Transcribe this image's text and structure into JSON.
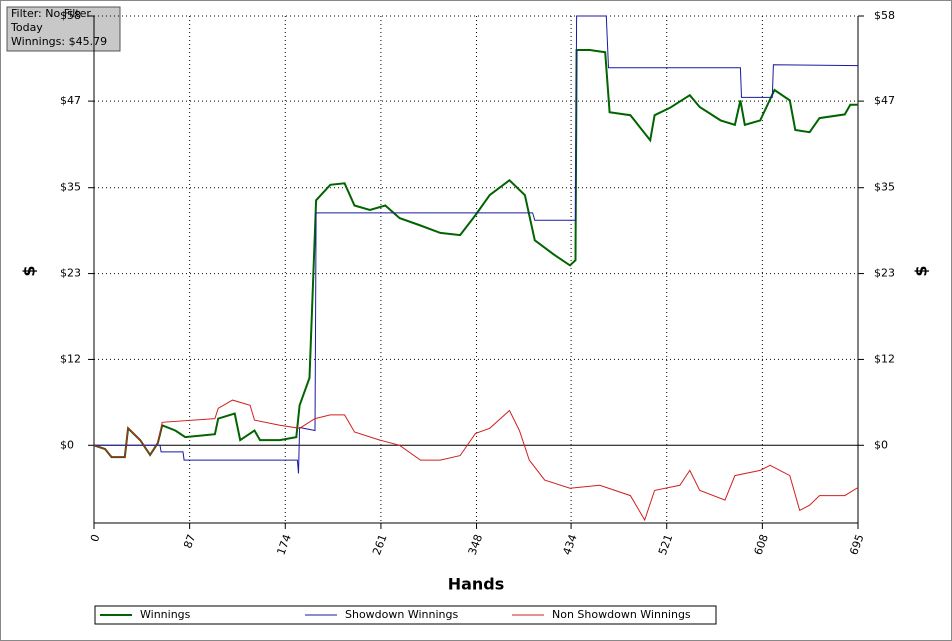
{
  "chart_data": {
    "type": "line",
    "info": [
      "Filter: No Filter",
      "Today",
      "Winnings: $45.79"
    ],
    "xlabel": "Hands",
    "ylabel": "$",
    "xlim": [
      0,
      695
    ],
    "xticks": [
      0,
      87,
      174,
      261,
      348,
      434,
      521,
      608,
      695
    ],
    "ylim": [
      -10.5,
      58
    ],
    "yticks": [
      {
        "value": 0,
        "label": "$0"
      },
      {
        "value": 11.6,
        "label": "$12"
      },
      {
        "value": 23.2,
        "label": "$23"
      },
      {
        "value": 34.8,
        "label": "$35"
      },
      {
        "value": 46.5,
        "label": "$47"
      },
      {
        "value": 58,
        "label": "$58"
      }
    ],
    "grid": true,
    "series": [
      {
        "name": "Winnings",
        "color": "#006400",
        "x": [
          0,
          10,
          16,
          28,
          31,
          42,
          51,
          58,
          62,
          74,
          83,
          110,
          113,
          128,
          133,
          146,
          151,
          169,
          184,
          187,
          196,
          202,
          215,
          228,
          237,
          251,
          265,
          278,
          297,
          315,
          333,
          347,
          360,
          378,
          392,
          401,
          419,
          433,
          438,
          439,
          451,
          465,
          469,
          488,
          506,
          510,
          524,
          542,
          551,
          570,
          583,
          588,
          592,
          606,
          619,
          633,
          638,
          651,
          660,
          683,
          688,
          695
        ],
        "values": [
          0,
          -0.5,
          -1.6,
          -1.6,
          2.3,
          0.7,
          -1.3,
          0.3,
          2.7,
          2.0,
          1.1,
          1.5,
          3.6,
          4.3,
          0.7,
          2.0,
          0.7,
          0.7,
          1.1,
          5.4,
          9.1,
          33.1,
          35.2,
          35.4,
          32.4,
          31.8,
          32.4,
          30.7,
          29.7,
          28.7,
          28.4,
          31.1,
          33.8,
          35.8,
          33.8,
          27.7,
          25.7,
          24.3,
          25.0,
          53.4,
          53.4,
          53.1,
          45.0,
          44.6,
          41.2,
          44.6,
          45.6,
          47.3,
          45.7,
          43.9,
          43.3,
          46.6,
          43.3,
          43.9,
          48.0,
          46.6,
          42.6,
          42.3,
          44.2,
          44.7,
          46.0,
          46.0
        ]
      },
      {
        "name": "Showdown Winnings",
        "color": "#1a1aa0",
        "x": [
          0,
          60,
          61,
          81,
          82,
          185,
          186,
          187,
          201,
          202,
          399,
          401,
          438,
          439,
          466,
          468,
          588,
          589,
          617,
          618,
          695
        ],
        "values": [
          0,
          0,
          -0.9,
          -0.9,
          -2.0,
          -2.0,
          -3.8,
          2.4,
          2.0,
          31.4,
          31.4,
          30.4,
          30.4,
          58,
          58,
          51.0,
          51.0,
          47.0,
          47.0,
          51.4,
          51.3
        ]
      },
      {
        "name": "Non Showdown Winnings",
        "color": "#d02020",
        "x": [
          0,
          10,
          16,
          28,
          31,
          42,
          51,
          58,
          62,
          110,
          113,
          126,
          142,
          146,
          169,
          187,
          201,
          215,
          228,
          237,
          260,
          278,
          297,
          315,
          333,
          347,
          360,
          378,
          387,
          396,
          410,
          433,
          460,
          488,
          501,
          510,
          533,
          542,
          551,
          574,
          583,
          606,
          615,
          633,
          642,
          651,
          660,
          683,
          695
        ],
        "values": [
          0,
          -0.5,
          -1.6,
          -1.6,
          2.3,
          0.7,
          -1.3,
          0.3,
          3.1,
          3.6,
          5.0,
          6.1,
          5.4,
          3.4,
          2.7,
          2.3,
          3.6,
          4.1,
          4.1,
          1.8,
          0.7,
          0,
          -2.0,
          -2.0,
          -1.4,
          1.6,
          2.3,
          4.7,
          2.0,
          -2.0,
          -4.7,
          -5.8,
          -5.4,
          -6.8,
          -10.1,
          -6.1,
          -5.4,
          -3.4,
          -6.1,
          -7.4,
          -4.1,
          -3.4,
          -2.7,
          -4.1,
          -8.8,
          -8.1,
          -6.8,
          -6.8,
          -5.7
        ]
      }
    ]
  }
}
